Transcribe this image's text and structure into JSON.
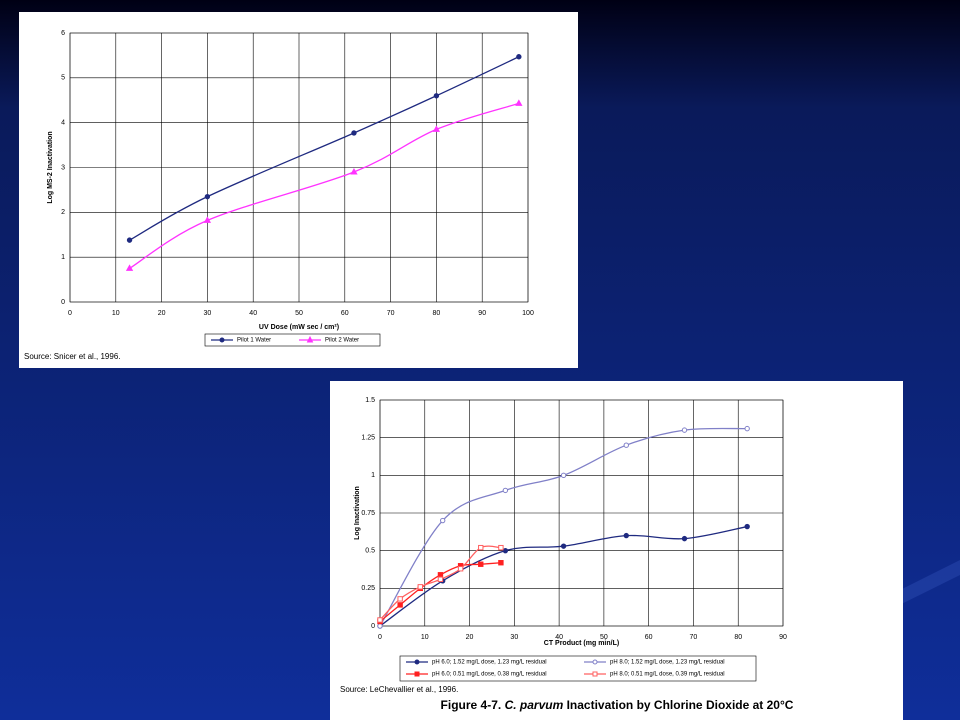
{
  "chart_data": [
    {
      "type": "line",
      "xlabel": "UV Dose (mW sec / cm²)",
      "ylabel": "Log MS-2 Inactivation",
      "source": "Source: Snicer et al., 1996.",
      "xlim": [
        0,
        100
      ],
      "xticks": [
        0,
        10,
        20,
        30,
        40,
        50,
        60,
        70,
        80,
        90,
        100
      ],
      "ylim": [
        0,
        6
      ],
      "yticks": [
        0,
        1,
        2,
        3,
        4,
        5,
        6
      ],
      "grid": true,
      "series": [
        {
          "name": "Pilot 1 Water",
          "color": "#1f2a80",
          "marker": "circle",
          "x": [
            13,
            30,
            62,
            80,
            98
          ],
          "values": [
            1.38,
            2.35,
            3.77,
            4.6,
            5.47
          ]
        },
        {
          "name": "Pilot 2 Water",
          "color": "#ff33ff",
          "marker": "triangle",
          "x": [
            13,
            30,
            62,
            80,
            98
          ],
          "values": [
            0.75,
            1.82,
            2.9,
            3.85,
            4.43
          ]
        }
      ]
    },
    {
      "type": "line",
      "xlabel": "CT Product (mg min/L)",
      "ylabel": "Log Inactivation",
      "source": "Source: LeChevallier et al., 1996.",
      "caption": [
        "Figure 4-7.",
        "C. parvum",
        "Inactivation by Chlorine Dioxide at 20°C"
      ],
      "xlim": [
        0,
        90
      ],
      "xticks": [
        0,
        10,
        20,
        30,
        40,
        50,
        60,
        70,
        80,
        90
      ],
      "ylim": [
        0,
        1.5
      ],
      "yticks": [
        0,
        0.25,
        0.5,
        0.75,
        1,
        1.25,
        1.5
      ],
      "grid": true,
      "series": [
        {
          "name": "pH 6.0; 1.52 mg/L dose, 1.23 mg/L residual",
          "color": "#1f2a80",
          "marker": "circle",
          "x": [
            0,
            14,
            28,
            41,
            55,
            68,
            82
          ],
          "values": [
            0,
            0.3,
            0.5,
            0.53,
            0.6,
            0.58,
            0.66
          ]
        },
        {
          "name": "pH 8.0; 1.52 mg/L dose, 1.23 mg/L residual",
          "color": "#8080c8",
          "marker": "open-circle",
          "x": [
            0,
            14,
            28,
            41,
            55,
            68,
            82
          ],
          "values": [
            0,
            0.7,
            0.9,
            1.0,
            1.2,
            1.3,
            1.31
          ]
        },
        {
          "name": "pH 6.0; 0.51 mg/L dose, 0.38 mg/L residual",
          "color": "#ff2020",
          "marker": "square",
          "x": [
            0,
            4.5,
            9,
            13.5,
            18,
            22.5,
            27
          ],
          "values": [
            0.03,
            0.14,
            0.25,
            0.34,
            0.4,
            0.41,
            0.42
          ]
        },
        {
          "name": "pH 8.0; 0.51 mg/L dose, 0.39 mg/L residual",
          "color": "#ff6060",
          "marker": "open-square",
          "x": [
            0,
            4.5,
            9,
            13.5,
            18,
            22.5,
            27
          ],
          "values": [
            0.04,
            0.18,
            0.26,
            0.31,
            0.38,
            0.52,
            0.52
          ]
        }
      ]
    }
  ]
}
